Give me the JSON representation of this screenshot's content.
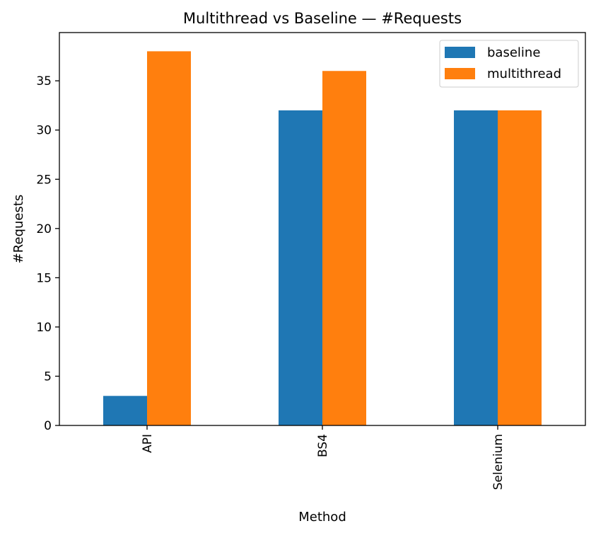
{
  "chart_data": {
    "type": "bar",
    "title": "Multithread vs Baseline — #Requests",
    "xlabel": "Method",
    "ylabel": "#Requests",
    "categories": [
      "API",
      "BS4",
      "Selenium"
    ],
    "series": [
      {
        "name": "baseline",
        "values": [
          3,
          32,
          32
        ],
        "color": "#1f77b4"
      },
      {
        "name": "multithread",
        "values": [
          38,
          36,
          32
        ],
        "color": "#ff7f0e"
      }
    ],
    "ylim": [
      0,
      39.9
    ],
    "yticks": [
      0,
      5,
      10,
      15,
      20,
      25,
      30,
      35
    ],
    "grid": false,
    "legend_position": "top-right"
  }
}
